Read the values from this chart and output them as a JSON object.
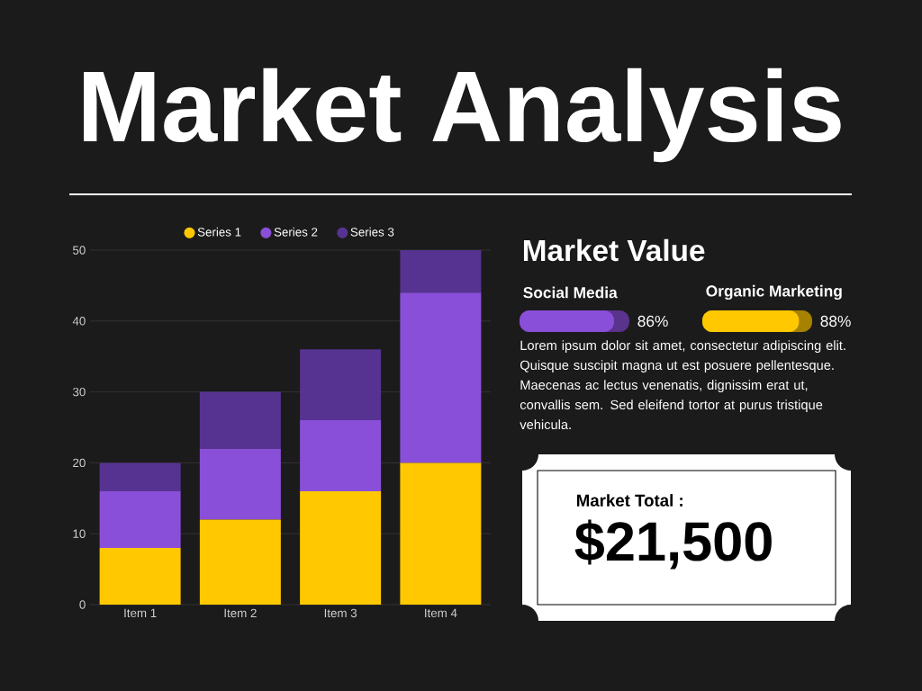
{
  "chart_data": [
    {
      "type": "bar",
      "title": "Market Analysis",
      "stacked": true,
      "categories": [
        "Item 1",
        "Item 2",
        "Item 3",
        "Item 4"
      ],
      "series": [
        {
          "name": "Series 1",
          "color": "#ffc800",
          "values": [
            8,
            12,
            16,
            20
          ]
        },
        {
          "name": "Series 2",
          "color": "#8a4fd8",
          "values": [
            8,
            10,
            10,
            24
          ]
        },
        {
          "name": "Series 3",
          "color": "#563391",
          "values": [
            4,
            8,
            10,
            6
          ]
        }
      ],
      "ylim": [
        0,
        50
      ],
      "yticks": [
        0,
        10,
        20,
        30,
        40,
        50
      ],
      "grid": "y",
      "legend": "top"
    },
    {
      "type": "other",
      "title": "Market Value",
      "categories": [
        "Social Media",
        "Organic Marketing"
      ],
      "values": [
        86,
        88
      ],
      "value_labels": [
        "86%",
        "88%"
      ],
      "colors": [
        "#8a4fd8",
        "#ffc800"
      ],
      "annotations": [
        "Lorem ipsum dolor sit amet, consectetur adipiscing elit. Quisque suscipit magna ut est posuere pellentesque. Maecenas ac lectus venenatis, dignissim erat ut, convallis sem. Sed eleifend tortor at purus tristique vehicula.",
        "Market Total :",
        "$21,500"
      ]
    }
  ]
}
